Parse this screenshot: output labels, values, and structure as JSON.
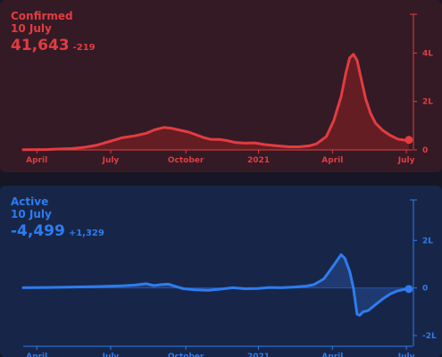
{
  "panels": {
    "confirmed": {
      "label": "Confirmed",
      "date": "10 July",
      "value": "41,643",
      "delta": "-219",
      "color": "#e23c40",
      "fill": "#6e1e24"
    },
    "active": {
      "label": "Active",
      "date": "10 July",
      "value": "-4,499",
      "delta": "+1,329",
      "color": "#2e7cf0",
      "fill": "#203e78"
    }
  },
  "chart_data": [
    {
      "type": "area",
      "x_ticks": [
        "April",
        "July",
        "October",
        "2021",
        "April",
        "July"
      ],
      "y_ticks": [
        "0",
        "2L",
        "4L"
      ],
      "y_tick_values": [
        0,
        200000,
        400000
      ],
      "ylim": [
        0,
        560000
      ],
      "x_range_months": [
        0,
        15.8
      ],
      "points": [
        [
          0,
          1000
        ],
        [
          0.5,
          1500
        ],
        [
          1,
          2000
        ],
        [
          1.5,
          4000
        ],
        [
          2,
          6000
        ],
        [
          2.5,
          11000
        ],
        [
          3,
          20000
        ],
        [
          3.5,
          35000
        ],
        [
          4,
          50000
        ],
        [
          4.5,
          58000
        ],
        [
          5,
          69000
        ],
        [
          5.3,
          82000
        ],
        [
          5.7,
          93000
        ],
        [
          6,
          90000
        ],
        [
          6.3,
          83000
        ],
        [
          6.7,
          74000
        ],
        [
          7,
          63000
        ],
        [
          7.3,
          52000
        ],
        [
          7.6,
          44000
        ],
        [
          8,
          43000
        ],
        [
          8.3,
          38000
        ],
        [
          8.6,
          31000
        ],
        [
          9,
          28000
        ],
        [
          9.4,
          29000
        ],
        [
          9.8,
          22000
        ],
        [
          10.3,
          17000
        ],
        [
          10.8,
          13000
        ],
        [
          11.2,
          13000
        ],
        [
          11.6,
          17000
        ],
        [
          11.9,
          25000
        ],
        [
          12.3,
          55000
        ],
        [
          12.6,
          120000
        ],
        [
          12.9,
          220000
        ],
        [
          13.1,
          320000
        ],
        [
          13.25,
          380000
        ],
        [
          13.4,
          395000
        ],
        [
          13.55,
          370000
        ],
        [
          13.7,
          300000
        ],
        [
          13.9,
          210000
        ],
        [
          14.1,
          150000
        ],
        [
          14.3,
          110000
        ],
        [
          14.6,
          80000
        ],
        [
          14.9,
          60000
        ],
        [
          15.2,
          45000
        ],
        [
          15.5,
          40000
        ],
        [
          15.65,
          41643
        ]
      ],
      "marker": [
        15.65,
        41643
      ]
    },
    {
      "type": "area",
      "x_ticks": [
        "April",
        "July",
        "October",
        "2021",
        "April",
        "July"
      ],
      "y_ticks": [
        "-2L",
        "0",
        "2L"
      ],
      "y_tick_values": [
        -200000,
        0,
        200000
      ],
      "ylim": [
        -200000,
        370000
      ],
      "x_range_months": [
        0,
        15.8
      ],
      "points": [
        [
          0,
          1000
        ],
        [
          1,
          2000
        ],
        [
          2,
          4000
        ],
        [
          3,
          6000
        ],
        [
          4,
          9000
        ],
        [
          4.5,
          12000
        ],
        [
          5,
          18000
        ],
        [
          5.3,
          10000
        ],
        [
          5.6,
          14000
        ],
        [
          5.9,
          16000
        ],
        [
          6.2,
          6000
        ],
        [
          6.5,
          -3000
        ],
        [
          7,
          -8000
        ],
        [
          7.5,
          -10000
        ],
        [
          8,
          -5000
        ],
        [
          8.5,
          1000
        ],
        [
          9,
          -3000
        ],
        [
          9.5,
          -2000
        ],
        [
          10,
          2000
        ],
        [
          10.5,
          1000
        ],
        [
          11,
          4000
        ],
        [
          11.5,
          8000
        ],
        [
          11.8,
          14000
        ],
        [
          12.2,
          38000
        ],
        [
          12.6,
          95000
        ],
        [
          12.9,
          140000
        ],
        [
          13.05,
          125000
        ],
        [
          13.25,
          70000
        ],
        [
          13.4,
          0
        ],
        [
          13.55,
          -110000
        ],
        [
          13.65,
          -115000
        ],
        [
          13.8,
          -100000
        ],
        [
          14.0,
          -95000
        ],
        [
          14.3,
          -70000
        ],
        [
          14.6,
          -45000
        ],
        [
          14.9,
          -25000
        ],
        [
          15.2,
          -12000
        ],
        [
          15.45,
          -6000
        ],
        [
          15.65,
          -4499
        ]
      ],
      "marker": [
        15.65,
        -4499
      ]
    }
  ]
}
